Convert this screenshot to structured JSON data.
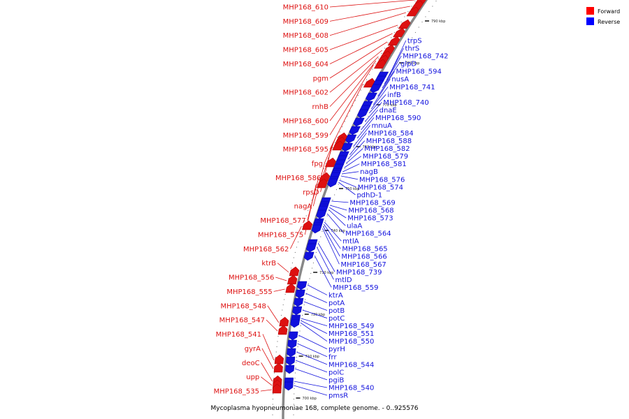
{
  "caption": "Mycoplasma hyopneumoniae 168, complete genome. - 0..925576",
  "legend": [
    {
      "label": "Forward",
      "color": "#ff0000"
    },
    {
      "label": "Reverse",
      "color": "#0000ff"
    }
  ],
  "colors": {
    "forward": "#dd1111",
    "reverse": "#1111dd",
    "backbone": "#888888"
  },
  "ticks": [
    {
      "kbp": 790,
      "label": "790 kbp"
    },
    {
      "kbp": 780,
      "label": "780 kbp"
    },
    {
      "kbp": 770,
      "label": "770 kbp"
    },
    {
      "kbp": 760,
      "label": "760 kbp"
    },
    {
      "kbp": 750,
      "label": "750 kbp"
    },
    {
      "kbp": 740,
      "label": "740 kbp"
    },
    {
      "kbp": 730,
      "label": "730 kbp"
    },
    {
      "kbp": 720,
      "label": "720 kbp"
    },
    {
      "kbp": 710,
      "label": "710 kbp"
    },
    {
      "kbp": 700,
      "label": "700 kbp"
    }
  ],
  "forward_genes": [
    {
      "name": "MHP168_610",
      "kbp": 795
    },
    {
      "name": "MHP168_609",
      "kbp": 793.5
    },
    {
      "name": "MHP168_608",
      "kbp": 792
    },
    {
      "name": "MHP168_605",
      "kbp": 789
    },
    {
      "name": "MHP168_604",
      "kbp": 787
    },
    {
      "name": "pgm",
      "kbp": 785
    },
    {
      "name": "MHP168_602",
      "kbp": 783
    },
    {
      "name": "rnhB",
      "kbp": 781.5
    },
    {
      "name": "MHP168_600",
      "kbp": 780.5
    },
    {
      "name": "MHP168_599",
      "kbp": 779.5
    },
    {
      "name": "MHP168_595",
      "kbp": 775
    },
    {
      "name": "fpg",
      "kbp": 762
    },
    {
      "name": "MHP168_586",
      "kbp": 761
    },
    {
      "name": "rpsD",
      "kbp": 760
    },
    {
      "name": "nagA",
      "kbp": 756
    },
    {
      "name": "MHP168_577",
      "kbp": 752.5
    },
    {
      "name": "MHP168_575",
      "kbp": 751
    },
    {
      "name": "MHP168_562",
      "kbp": 741
    },
    {
      "name": "ktrB",
      "kbp": 730
    },
    {
      "name": "MHP168_556",
      "kbp": 728
    },
    {
      "name": "MHP168_555",
      "kbp": 726
    },
    {
      "name": "MHP168_548",
      "kbp": 718
    },
    {
      "name": "MHP168_547",
      "kbp": 716
    },
    {
      "name": "MHP168_541",
      "kbp": 709
    },
    {
      "name": "gyrA",
      "kbp": 707
    },
    {
      "name": "deoC",
      "kbp": 704
    },
    {
      "name": "upp",
      "kbp": 703
    },
    {
      "name": "MHP168_535",
      "kbp": 702
    }
  ],
  "reverse_genes": [
    {
      "name": "trpS",
      "kbp": 777
    },
    {
      "name": "thrS",
      "kbp": 776
    },
    {
      "name": "MHP168_742",
      "kbp": 775
    },
    {
      "name": "glpD",
      "kbp": 774
    },
    {
      "name": "MHP168_594",
      "kbp": 772
    },
    {
      "name": "nusA",
      "kbp": 770
    },
    {
      "name": "MHP168_741",
      "kbp": 769
    },
    {
      "name": "infB",
      "kbp": 768
    },
    {
      "name": "MHP168_740",
      "kbp": 766
    },
    {
      "name": "dnaE",
      "kbp": 764
    },
    {
      "name": "MHP168_590",
      "kbp": 762
    },
    {
      "name": "mnuA",
      "kbp": 760
    },
    {
      "name": "MHP168_584",
      "kbp": 758
    },
    {
      "name": "MHP168_588",
      "kbp": 757
    },
    {
      "name": "MHP168_582",
      "kbp": 756
    },
    {
      "name": "MHP168_579",
      "kbp": 755
    },
    {
      "name": "MHP168_581",
      "kbp": 754
    },
    {
      "name": "nagB",
      "kbp": 753.5
    },
    {
      "name": "MHP168_576",
      "kbp": 753
    },
    {
      "name": "MHP168_574",
      "kbp": 752
    },
    {
      "name": "pdhD-1",
      "kbp": 751.5
    },
    {
      "name": "MHP168_569",
      "kbp": 747
    },
    {
      "name": "MHP168_568",
      "kbp": 746
    },
    {
      "name": "MHP168_573",
      "kbp": 745.5
    },
    {
      "name": "ulaA",
      "kbp": 745
    },
    {
      "name": "MHP168_564",
      "kbp": 744
    },
    {
      "name": "mtlA",
      "kbp": 742
    },
    {
      "name": "MHP168_565",
      "kbp": 741.5
    },
    {
      "name": "MHP168_566",
      "kbp": 741
    },
    {
      "name": "MHP168_567",
      "kbp": 740.5
    },
    {
      "name": "MHP168_739",
      "kbp": 737
    },
    {
      "name": "mtlD",
      "kbp": 736
    },
    {
      "name": "MHP168_559",
      "kbp": 734
    },
    {
      "name": "ktrA",
      "kbp": 727
    },
    {
      "name": "potA",
      "kbp": 725
    },
    {
      "name": "potB",
      "kbp": 723
    },
    {
      "name": "potC",
      "kbp": 721
    },
    {
      "name": "MHP168_549",
      "kbp": 719
    },
    {
      "name": "MHP168_551",
      "kbp": 718.5
    },
    {
      "name": "MHP168_550",
      "kbp": 718
    },
    {
      "name": "pyrH",
      "kbp": 715
    },
    {
      "name": "frr",
      "kbp": 713
    },
    {
      "name": "MHP168_544",
      "kbp": 711
    },
    {
      "name": "polC",
      "kbp": 709
    },
    {
      "name": "pgiB",
      "kbp": 707
    },
    {
      "name": "MHP168_540",
      "kbp": 704
    },
    {
      "name": "pmsR",
      "kbp": 703
    }
  ]
}
